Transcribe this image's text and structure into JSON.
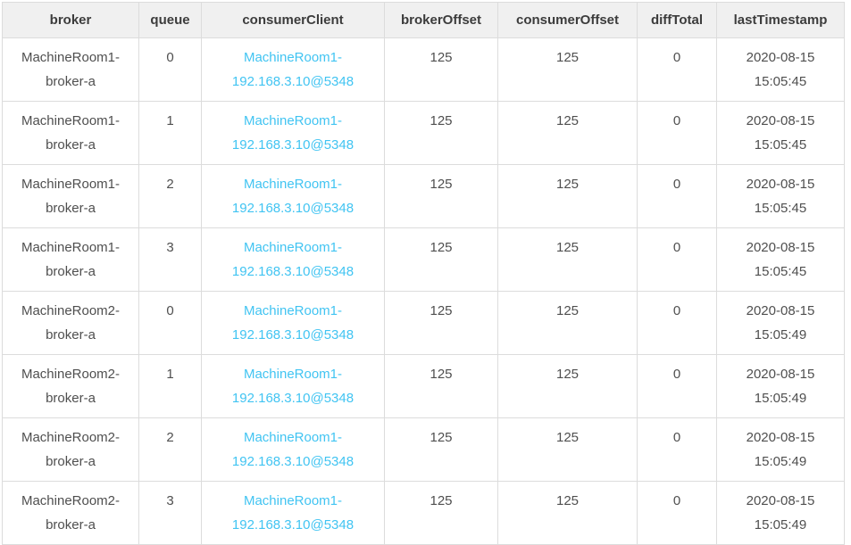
{
  "theme": {
    "header_bg": "#f0f0f0",
    "border_color": "#dcdcdc",
    "header_text": "#3c3c3c",
    "body_text": "#4f4f4f",
    "link_color": "#41c4f2"
  },
  "table": {
    "columns": [
      {
        "key": "broker",
        "label": "broker"
      },
      {
        "key": "queue",
        "label": "queue"
      },
      {
        "key": "consumerClient",
        "label": "consumerClient"
      },
      {
        "key": "brokerOffset",
        "label": "brokerOffset"
      },
      {
        "key": "consumerOffset",
        "label": "consumerOffset"
      },
      {
        "key": "diffTotal",
        "label": "diffTotal"
      },
      {
        "key": "lastTimestamp",
        "label": "lastTimestamp"
      }
    ],
    "rows": [
      {
        "broker": "MachineRoom1-broker-a",
        "queue": "0",
        "consumerClient": "MachineRoom1-192.168.3.10@5348",
        "brokerOffset": "125",
        "consumerOffset": "125",
        "diffTotal": "0",
        "lastTimestamp": "2020-08-15 15:05:45"
      },
      {
        "broker": "MachineRoom1-broker-a",
        "queue": "1",
        "consumerClient": "MachineRoom1-192.168.3.10@5348",
        "brokerOffset": "125",
        "consumerOffset": "125",
        "diffTotal": "0",
        "lastTimestamp": "2020-08-15 15:05:45"
      },
      {
        "broker": "MachineRoom1-broker-a",
        "queue": "2",
        "consumerClient": "MachineRoom1-192.168.3.10@5348",
        "brokerOffset": "125",
        "consumerOffset": "125",
        "diffTotal": "0",
        "lastTimestamp": "2020-08-15 15:05:45"
      },
      {
        "broker": "MachineRoom1-broker-a",
        "queue": "3",
        "consumerClient": "MachineRoom1-192.168.3.10@5348",
        "brokerOffset": "125",
        "consumerOffset": "125",
        "diffTotal": "0",
        "lastTimestamp": "2020-08-15 15:05:45"
      },
      {
        "broker": "MachineRoom2-broker-a",
        "queue": "0",
        "consumerClient": "MachineRoom1-192.168.3.10@5348",
        "brokerOffset": "125",
        "consumerOffset": "125",
        "diffTotal": "0",
        "lastTimestamp": "2020-08-15 15:05:49"
      },
      {
        "broker": "MachineRoom2-broker-a",
        "queue": "1",
        "consumerClient": "MachineRoom1-192.168.3.10@5348",
        "brokerOffset": "125",
        "consumerOffset": "125",
        "diffTotal": "0",
        "lastTimestamp": "2020-08-15 15:05:49"
      },
      {
        "broker": "MachineRoom2-broker-a",
        "queue": "2",
        "consumerClient": "MachineRoom1-192.168.3.10@5348",
        "brokerOffset": "125",
        "consumerOffset": "125",
        "diffTotal": "0",
        "lastTimestamp": "2020-08-15 15:05:49"
      },
      {
        "broker": "MachineRoom2-broker-a",
        "queue": "3",
        "consumerClient": "MachineRoom1-192.168.3.10@5348",
        "brokerOffset": "125",
        "consumerOffset": "125",
        "diffTotal": "0",
        "lastTimestamp": "2020-08-15 15:05:49"
      }
    ]
  }
}
